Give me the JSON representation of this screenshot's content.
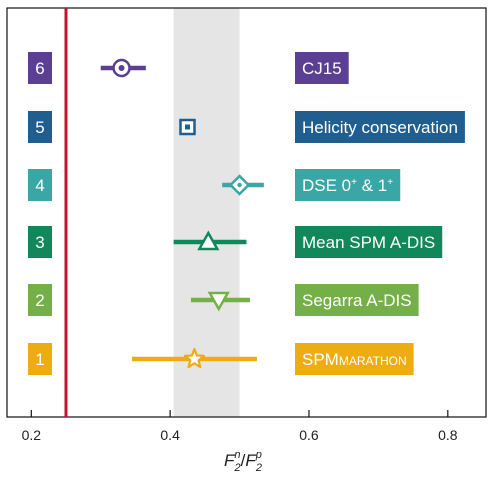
{
  "chart_data": {
    "type": "scatter",
    "orientation": "horizontal",
    "xlabel": {
      "base": "F",
      "sub1": "2",
      "sup1": "n",
      "sep": "/",
      "sub2": "2",
      "sup2": "p"
    },
    "xlim": [
      0.165,
      0.855
    ],
    "xticks": [
      0.2,
      0.4,
      0.6,
      0.8
    ],
    "tick_labels": [
      "0.2",
      "0.4",
      "0.6",
      "0.8"
    ],
    "grid": false,
    "legend": "none",
    "reference_line": {
      "x": 0.25,
      "color": "#c0132d"
    },
    "shaded_band": {
      "x": [
        0.405,
        0.5
      ],
      "color": "#e5e5e5"
    },
    "points": [
      {
        "id": "6",
        "number": "6",
        "value": 0.33,
        "err_lo": 0.3,
        "err_hi": 0.365,
        "marker": "circle-dot",
        "color": "#5b3f92",
        "label_parts": [
          {
            "text": "CJ15"
          }
        ]
      },
      {
        "id": "5",
        "number": "5",
        "value": 0.425,
        "err_lo": 0.425,
        "err_hi": 0.425,
        "marker": "square-dot",
        "color": "#1f5e8e",
        "label_parts": [
          {
            "text": "Helicity conservation"
          }
        ]
      },
      {
        "id": "4",
        "number": "4",
        "value": 0.5,
        "err_lo": 0.475,
        "err_hi": 0.535,
        "marker": "diamond-dot",
        "color": "#3aa6a6",
        "label_parts": [
          {
            "text": "DSE 0"
          },
          {
            "text": "+",
            "style": "sup"
          },
          {
            "text": " & 1"
          },
          {
            "text": "+",
            "style": "sup"
          }
        ]
      },
      {
        "id": "3",
        "number": "3",
        "value": 0.455,
        "err_lo": 0.405,
        "err_hi": 0.51,
        "marker": "triangle-up",
        "color": "#13875c",
        "label_parts": [
          {
            "text": "Mean SPM A-DIS"
          }
        ]
      },
      {
        "id": "2",
        "number": "2",
        "value": 0.47,
        "err_lo": 0.43,
        "err_hi": 0.515,
        "marker": "triangle-down",
        "color": "#74b047",
        "label_parts": [
          {
            "text": "Segarra A-DIS"
          }
        ]
      },
      {
        "id": "1",
        "number": "1",
        "value": 0.435,
        "err_lo": 0.345,
        "err_hi": 0.525,
        "marker": "star",
        "color": "#efac12",
        "label_parts": [
          {
            "text": "SPM"
          },
          {
            "text": "MARATHON",
            "style": "smallcaps"
          }
        ]
      }
    ]
  }
}
